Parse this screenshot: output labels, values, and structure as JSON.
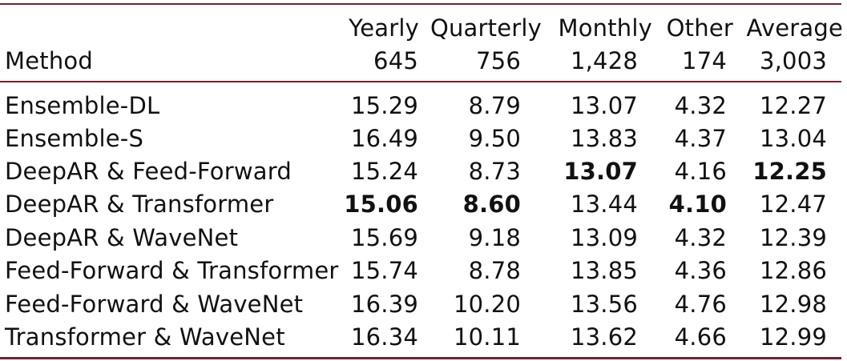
{
  "header": {
    "method_label": "Method",
    "columns": [
      {
        "name": "Yearly",
        "count": "645"
      },
      {
        "name": "Quarterly",
        "count": "756"
      },
      {
        "name": "Monthly",
        "count": "1,428"
      },
      {
        "name": "Other",
        "count": "174"
      },
      {
        "name": "Average",
        "count": "3,003"
      }
    ]
  },
  "rows": [
    {
      "method": "Ensemble-DL",
      "values": [
        "15.29",
        "8.79",
        "13.07",
        "4.32",
        "12.27"
      ],
      "bold": [
        false,
        false,
        false,
        false,
        false
      ]
    },
    {
      "method": "Ensemble-S",
      "values": [
        "16.49",
        "9.50",
        "13.83",
        "4.37",
        "13.04"
      ],
      "bold": [
        false,
        false,
        false,
        false,
        false
      ]
    },
    {
      "method": "DeepAR & Feed-Forward",
      "values": [
        "15.24",
        "8.73",
        "13.07",
        "4.16",
        "12.25"
      ],
      "bold": [
        false,
        false,
        true,
        false,
        true
      ]
    },
    {
      "method": "DeepAR & Transformer",
      "values": [
        "15.06",
        "8.60",
        "13.44",
        "4.10",
        "12.47"
      ],
      "bold": [
        true,
        true,
        false,
        true,
        false
      ]
    },
    {
      "method": "DeepAR & WaveNet",
      "values": [
        "15.69",
        "9.18",
        "13.09",
        "4.32",
        "12.39"
      ],
      "bold": [
        false,
        false,
        false,
        false,
        false
      ]
    },
    {
      "method": "Feed-Forward & Transformer",
      "values": [
        "15.74",
        "8.78",
        "13.85",
        "4.36",
        "12.86"
      ],
      "bold": [
        false,
        false,
        false,
        false,
        false
      ]
    },
    {
      "method": "Feed-Forward & WaveNet",
      "values": [
        "16.39",
        "10.20",
        "13.56",
        "4.76",
        "12.98"
      ],
      "bold": [
        false,
        false,
        false,
        false,
        false
      ]
    },
    {
      "method": "Transformer & WaveNet",
      "values": [
        "16.34",
        "10.11",
        "13.62",
        "4.66",
        "12.99"
      ],
      "bold": [
        false,
        false,
        false,
        false,
        false
      ]
    }
  ],
  "colors": {
    "rule": "#7a1f2e",
    "text": "#111111"
  }
}
